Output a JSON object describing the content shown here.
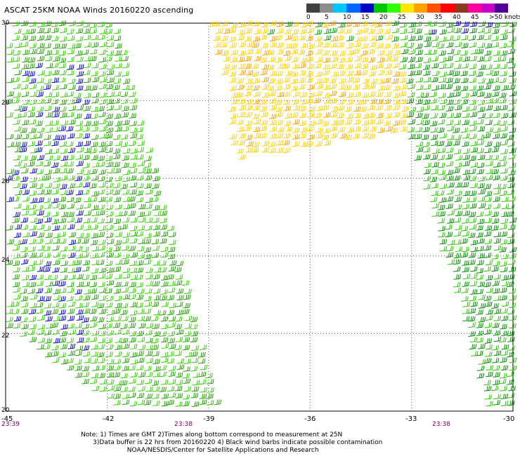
{
  "title": "ASCAT 25KM NOAA Winds 20160220 ascending",
  "legend": {
    "colors": [
      "#404040",
      "#8c8c8c",
      "#00c8ff",
      "#0064ff",
      "#0000c8",
      "#00c800",
      "#32ff00",
      "#ffe600",
      "#ffa000",
      "#ff5000",
      "#ff0000",
      "#8b3a1a",
      "#ff00a0",
      "#c800c8",
      "#500096"
    ],
    "labels": [
      "0",
      "5",
      "10",
      "15",
      "20",
      "25",
      "30",
      "35",
      "40",
      "45",
      ">50 knots"
    ]
  },
  "map": {
    "lon_labels": [
      "-45",
      "-42",
      "-39",
      "-36",
      "-33",
      "-30"
    ],
    "lat_labels": [
      "30",
      "28",
      "26",
      "24",
      "22",
      "20"
    ],
    "lon_range": [
      -45,
      -30
    ],
    "lat_range": [
      20,
      30
    ],
    "grid": true,
    "time_labels": [
      "23:39",
      "23:38",
      "23:38"
    ]
  },
  "notes": [
    "Note: 1) Times are GMT 2)Times along bottom correspond to measurement at 25N",
    "      3)Data buffer is 22 hrs from 20160220 4) Black wind barbs indicate possible contamination",
    "                       NOAA/NESDIS/Center for Satellite Applications and Research"
  ]
}
